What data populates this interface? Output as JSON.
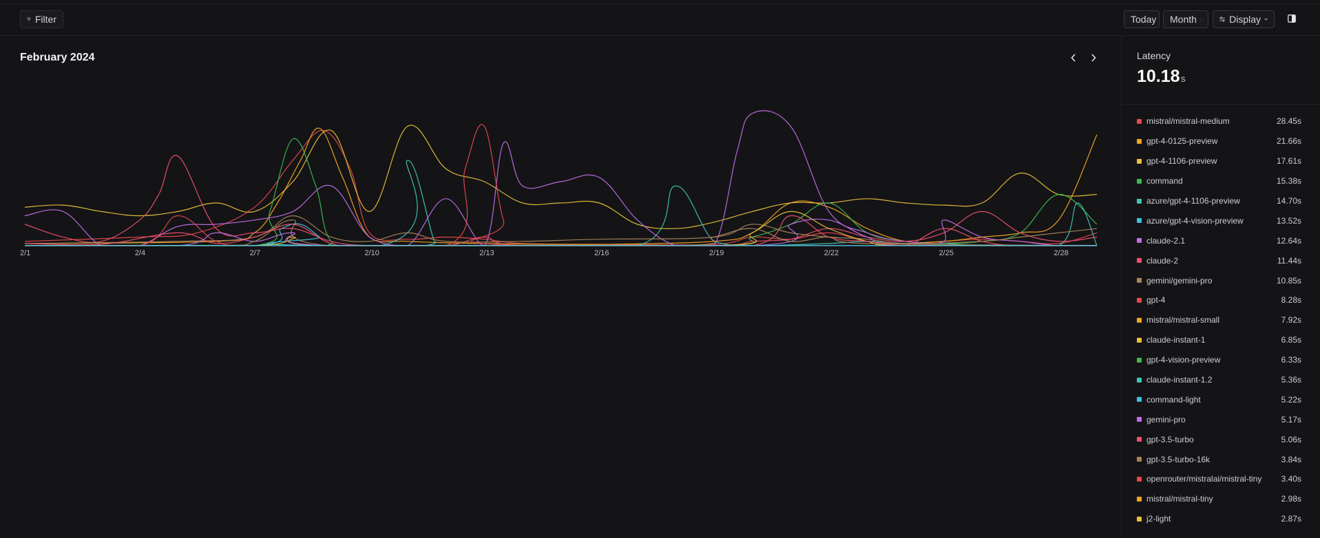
{
  "toolbar": {
    "filter_label": "Filter",
    "today_label": "Today",
    "month_label": "Month",
    "display_label": "Display"
  },
  "main": {
    "title": "February 2024"
  },
  "sidebar": {
    "label": "Latency",
    "value": "10.18",
    "unit": "s",
    "legend": [
      {
        "name": "mistral/mistral-medium",
        "value": "28.45s",
        "color": "#e5484d"
      },
      {
        "name": "gpt-4-0125-preview",
        "value": "21.66s",
        "color": "#f5a524"
      },
      {
        "name": "gpt-4-1106-preview",
        "value": "17.61s",
        "color": "#e9c13b"
      },
      {
        "name": "command",
        "value": "15.38s",
        "color": "#3fb950"
      },
      {
        "name": "azure/gpt-4-1106-preview",
        "value": "14.70s",
        "color": "#3ec7b5"
      },
      {
        "name": "azure/gpt-4-vision-preview",
        "value": "13.52s",
        "color": "#3fc1e0"
      },
      {
        "name": "claude-2.1",
        "value": "12.64s",
        "color": "#c06ee8"
      },
      {
        "name": "claude-2",
        "value": "11.44s",
        "color": "#ef4f6e"
      },
      {
        "name": "gemini/gemini-pro",
        "value": "10.85s",
        "color": "#a8845a"
      },
      {
        "name": "gpt-4",
        "value": "8.28s",
        "color": "#e5484d"
      },
      {
        "name": "mistral/mistral-small",
        "value": "7.92s",
        "color": "#f5a524"
      },
      {
        "name": "claude-instant-1",
        "value": "6.85s",
        "color": "#e9c13b"
      },
      {
        "name": "gpt-4-vision-preview",
        "value": "6.33s",
        "color": "#3fb950"
      },
      {
        "name": "claude-instant-1.2",
        "value": "5.36s",
        "color": "#3ec7b5"
      },
      {
        "name": "command-light",
        "value": "5.22s",
        "color": "#3fc1e0"
      },
      {
        "name": "gemini-pro",
        "value": "5.17s",
        "color": "#c06ee8"
      },
      {
        "name": "gpt-3.5-turbo",
        "value": "5.06s",
        "color": "#ef4f6e"
      },
      {
        "name": "gpt-3.5-turbo-16k",
        "value": "3.84s",
        "color": "#a8845a"
      },
      {
        "name": "openrouter/mistralai/mistral-tiny",
        "value": "3.40s",
        "color": "#e5484d"
      },
      {
        "name": "mistral/mistral-tiny",
        "value": "2.98s",
        "color": "#f5a524"
      },
      {
        "name": "j2-light",
        "value": "2.87s",
        "color": "#e9c13b"
      }
    ]
  },
  "chart_data": {
    "type": "line",
    "title": "February 2024",
    "x_tick_labels": [
      "2/1",
      "2/4",
      "2/7",
      "2/10",
      "2/13",
      "2/16",
      "2/19",
      "2/22",
      "2/25",
      "2/28"
    ],
    "x_days": [
      1,
      29
    ],
    "ylim": [
      0,
      30
    ],
    "grid": false,
    "legend": "right",
    "series": [
      {
        "name": "mistral/mistral-medium",
        "color": "#e5484d",
        "points": [
          [
            1,
            1
          ],
          [
            4,
            2
          ],
          [
            5.5,
            3
          ],
          [
            7,
            9
          ],
          [
            8,
            20
          ],
          [
            8.8,
            27
          ],
          [
            9.5,
            18
          ],
          [
            10,
            3
          ],
          [
            11,
            1.5
          ],
          [
            12,
            2
          ],
          [
            13,
            1.5
          ],
          [
            14,
            0.5
          ],
          [
            16,
            0.3
          ],
          [
            19,
            0.3
          ],
          [
            20,
            2
          ],
          [
            21,
            1.5
          ],
          [
            22,
            3
          ],
          [
            23,
            1
          ],
          [
            24,
            0.5
          ],
          [
            25,
            1
          ],
          [
            26,
            1.5
          ],
          [
            27,
            1
          ],
          [
            28,
            0.5
          ],
          [
            29,
            3
          ]
        ]
      },
      {
        "name": "gpt-4-0125-preview",
        "color": "#f5a524",
        "points": [
          [
            1,
            0.5
          ],
          [
            6,
            1
          ],
          [
            7,
            3
          ],
          [
            7.6,
            10
          ],
          [
            8.2,
            20
          ],
          [
            8.7,
            27.5
          ],
          [
            9.3,
            16
          ],
          [
            10,
            2
          ],
          [
            11,
            1
          ],
          [
            13,
            0.5
          ],
          [
            16,
            0.3
          ],
          [
            19,
            1
          ],
          [
            20,
            3
          ],
          [
            21,
            10
          ],
          [
            22,
            9
          ],
          [
            23,
            4
          ],
          [
            24,
            1
          ],
          [
            25,
            1
          ],
          [
            26,
            2
          ],
          [
            27,
            3
          ],
          [
            28,
            6
          ],
          [
            29,
            26
          ]
        ]
      },
      {
        "name": "gpt-4-1106-preview",
        "color": "#e9c13b",
        "points": [
          [
            1,
            9
          ],
          [
            2,
            9.5
          ],
          [
            3,
            8
          ],
          [
            4,
            7
          ],
          [
            5,
            8
          ],
          [
            6,
            10
          ],
          [
            7,
            8
          ],
          [
            8,
            15
          ],
          [
            9,
            27
          ],
          [
            10,
            8
          ],
          [
            11,
            28
          ],
          [
            12,
            18
          ],
          [
            13,
            15
          ],
          [
            14,
            10
          ],
          [
            15,
            10
          ],
          [
            16,
            10
          ],
          [
            17,
            5
          ],
          [
            18,
            4
          ],
          [
            19,
            5.5
          ],
          [
            20,
            8
          ],
          [
            21,
            10
          ],
          [
            22,
            10
          ],
          [
            23,
            11
          ],
          [
            24,
            10
          ],
          [
            25,
            9.5
          ],
          [
            26,
            10
          ],
          [
            27,
            17
          ],
          [
            28,
            12
          ],
          [
            29,
            12
          ]
        ]
      },
      {
        "name": "command",
        "color": "#3fb950",
        "points": [
          [
            1,
            0
          ],
          [
            7,
            0
          ],
          [
            7.4,
            8
          ],
          [
            8,
            25
          ],
          [
            8.6,
            14
          ],
          [
            9,
            1
          ],
          [
            10,
            0
          ],
          [
            19,
            0
          ],
          [
            20,
            2
          ],
          [
            21,
            5
          ],
          [
            22,
            10
          ],
          [
            23,
            3
          ],
          [
            24,
            1
          ],
          [
            25,
            0.5
          ],
          [
            26,
            1
          ],
          [
            27,
            3
          ],
          [
            28,
            12
          ],
          [
            29,
            5
          ]
        ]
      },
      {
        "name": "azure/gpt-4-1106-preview",
        "color": "#3ec7b5",
        "points": [
          [
            1,
            0
          ],
          [
            10.3,
            0
          ],
          [
            11,
            20
          ],
          [
            11.7,
            1
          ],
          [
            12,
            0
          ],
          [
            17,
            0
          ],
          [
            18,
            14
          ],
          [
            19,
            1
          ],
          [
            20,
            0
          ],
          [
            22,
            0.5
          ],
          [
            23,
            1
          ],
          [
            24,
            0.5
          ],
          [
            25,
            0.5
          ],
          [
            26,
            0
          ],
          [
            28,
            0
          ],
          [
            28.5,
            10
          ],
          [
            29,
            0
          ]
        ]
      },
      {
        "name": "azure/gpt-4-vision-preview",
        "color": "#3fc1e0",
        "points": [
          [
            1,
            0
          ],
          [
            7,
            0
          ],
          [
            7.7,
            4
          ],
          [
            8.2,
            5
          ],
          [
            8.7,
            2
          ],
          [
            9,
            0
          ],
          [
            29,
            0
          ]
        ]
      },
      {
        "name": "claude-2.1",
        "color": "#c06ee8",
        "points": [
          [
            1,
            7
          ],
          [
            2,
            8
          ],
          [
            3,
            0
          ],
          [
            4,
            0
          ],
          [
            5,
            4.5
          ],
          [
            6,
            5
          ],
          [
            7,
            6
          ],
          [
            8,
            8
          ],
          [
            9,
            14
          ],
          [
            10,
            2
          ],
          [
            11,
            0
          ],
          [
            12,
            11
          ],
          [
            13,
            0
          ],
          [
            13.5,
            24
          ],
          [
            14,
            14
          ],
          [
            15,
            15
          ],
          [
            16,
            16
          ],
          [
            17,
            6
          ],
          [
            18,
            0
          ],
          [
            19,
            0
          ],
          [
            19.6,
            22
          ],
          [
            20,
            31
          ],
          [
            21,
            28
          ],
          [
            22,
            8
          ],
          [
            23,
            3
          ],
          [
            24,
            1
          ],
          [
            25,
            1
          ],
          [
            25,
            6
          ],
          [
            26,
            2
          ],
          [
            27,
            1
          ],
          [
            28,
            0
          ],
          [
            29,
            0
          ]
        ]
      },
      {
        "name": "claude-2",
        "color": "#ef4f6e",
        "points": [
          [
            1,
            5
          ],
          [
            2,
            2
          ],
          [
            3,
            1
          ],
          [
            4,
            6
          ],
          [
            4.5,
            12
          ],
          [
            5,
            21
          ],
          [
            6,
            4
          ],
          [
            7,
            3
          ],
          [
            8,
            4
          ],
          [
            9,
            1
          ],
          [
            10,
            0
          ],
          [
            12,
            0
          ],
          [
            13,
            2
          ],
          [
            14,
            0
          ],
          [
            19,
            0
          ],
          [
            20,
            1
          ],
          [
            21,
            1.5
          ],
          [
            22,
            4
          ],
          [
            23,
            2
          ],
          [
            24,
            1
          ],
          [
            25,
            3
          ],
          [
            26,
            8
          ],
          [
            27,
            3
          ],
          [
            28,
            1
          ],
          [
            29,
            2
          ]
        ]
      },
      {
        "name": "gemini/gemini-pro",
        "color": "#a8845a",
        "points": [
          [
            1,
            0.5
          ],
          [
            5,
            1
          ],
          [
            7,
            2
          ],
          [
            8,
            7
          ],
          [
            9,
            2
          ],
          [
            10,
            1
          ],
          [
            11,
            3
          ],
          [
            12,
            1
          ],
          [
            14,
            1
          ],
          [
            16,
            1.5
          ],
          [
            19,
            2
          ],
          [
            20,
            5
          ],
          [
            21,
            3
          ],
          [
            22,
            2
          ],
          [
            23,
            1.5
          ],
          [
            24,
            0.5
          ],
          [
            26,
            1
          ],
          [
            27,
            2
          ],
          [
            28,
            3
          ],
          [
            29,
            4
          ]
        ]
      },
      {
        "name": "gpt-4",
        "color": "#e5484d",
        "points": [
          [
            1,
            0
          ],
          [
            4,
            0
          ],
          [
            5,
            7
          ],
          [
            6,
            1
          ],
          [
            7,
            0
          ],
          [
            12,
            0
          ],
          [
            12.5,
            18
          ],
          [
            13,
            28
          ],
          [
            13.5,
            6
          ],
          [
            14,
            0
          ],
          [
            29,
            0
          ]
        ]
      },
      {
        "name": "claude-instant-1",
        "color": "#e9c13b",
        "points": [
          [
            1,
            0
          ],
          [
            7,
            0
          ],
          [
            8,
            2
          ],
          [
            9,
            0
          ],
          [
            19,
            0
          ],
          [
            20,
            3
          ],
          [
            21,
            8
          ],
          [
            22,
            4
          ],
          [
            23,
            1
          ],
          [
            24,
            0
          ],
          [
            29,
            0
          ]
        ]
      },
      {
        "name": "gemini-pro",
        "color": "#c06ee8",
        "points": [
          [
            1,
            0
          ],
          [
            5,
            0
          ],
          [
            6,
            3
          ],
          [
            7,
            1
          ],
          [
            8,
            3
          ],
          [
            9,
            0
          ],
          [
            20,
            0
          ],
          [
            21,
            5
          ],
          [
            22,
            6
          ],
          [
            23,
            2
          ],
          [
            24,
            0
          ],
          [
            29,
            0
          ]
        ]
      },
      {
        "name": "gpt-3.5-turbo",
        "color": "#ef4f6e",
        "points": [
          [
            1,
            0.5
          ],
          [
            3,
            0.3
          ],
          [
            5,
            3
          ],
          [
            6,
            0.5
          ],
          [
            7,
            2
          ],
          [
            8,
            5
          ],
          [
            9,
            0.5
          ],
          [
            10,
            0
          ],
          [
            16,
            0
          ],
          [
            20,
            0
          ],
          [
            21,
            7
          ],
          [
            22,
            2
          ],
          [
            23,
            1
          ],
          [
            24,
            0
          ],
          [
            25,
            4
          ],
          [
            26,
            1
          ],
          [
            27,
            0
          ],
          [
            29,
            0
          ]
        ]
      },
      {
        "name": "gpt-3.5-turbo-16k",
        "color": "#a8845a",
        "points": [
          [
            1,
            0
          ],
          [
            6,
            0
          ],
          [
            7,
            1
          ],
          [
            8,
            6
          ],
          [
            9,
            0
          ],
          [
            18,
            0
          ],
          [
            19,
            2
          ],
          [
            20,
            4
          ],
          [
            21,
            1
          ],
          [
            22,
            2
          ],
          [
            23,
            0.5
          ],
          [
            29,
            0
          ]
        ]
      }
    ]
  }
}
